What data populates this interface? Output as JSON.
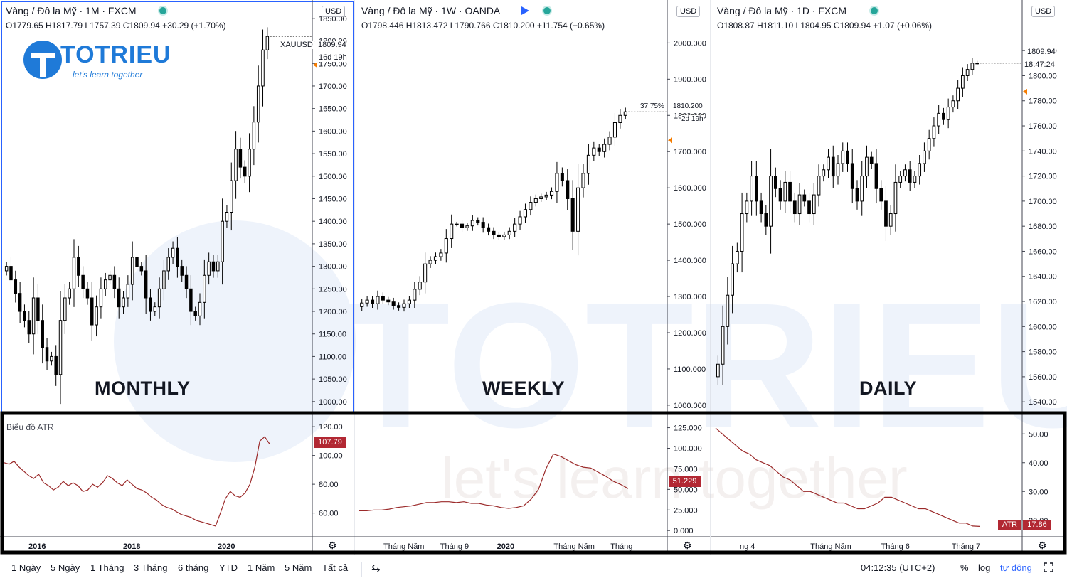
{
  "watermark": {
    "brand": "TOTRIEU",
    "tagline": "let's learn together"
  },
  "panels": [
    {
      "header": "Vàng / Đô la Mỹ · 1M · FXCM",
      "ohlc": "O1779.65  H1817.79  L1757.39  C1809.94  +30.29 (+1.70%)",
      "big_label": "MONTHLY"
    },
    {
      "header": "Vàng / Đô la Mỹ · 1W · OANDA",
      "ohlc": "O1798.446  H1813.472  L1790.766  C1810.200  +11.754 (+0.65%)",
      "big_label": "WEEKLY"
    },
    {
      "header": "Vàng / Đô la Mỹ · 1D · FXCM",
      "ohlc": "O1808.87  H1811.10  L1804.95  C1809.94  +1.07 (+0.06%)",
      "big_label": "DAILY"
    }
  ],
  "usd_badge": "USD",
  "price_markers": {
    "monthly": {
      "symbol": "XAUUSD",
      "price": "1809.94",
      "countdown": "16d 19h"
    },
    "weekly": {
      "pct": "37.75%",
      "price": "1810.200",
      "countdown": "2d 19h"
    },
    "daily": {
      "price": "1809.94",
      "countdown": "18:47:24"
    }
  },
  "atr_label": "Biểu đồ ATR",
  "atr_markers": {
    "monthly": "107.79",
    "weekly": "51.229",
    "daily_name": "ATR",
    "daily": "17.86"
  },
  "chart_data": [
    {
      "type": "candlestick",
      "timeframe": "1M",
      "price_axis": {
        "ticks": [
          "1850.00",
          "1800.00",
          "1750.00",
          "1700.00",
          "1650.00",
          "1600.00",
          "1550.00",
          "1500.00",
          "1450.00",
          "1400.00",
          "1350.00",
          "1300.00",
          "1250.00",
          "1200.00",
          "1150.00",
          "1100.00",
          "1050.00",
          "1000.00"
        ],
        "range": [
          995,
          1875
        ]
      },
      "time_axis": [
        "2016",
        "2018",
        "2020"
      ],
      "close_series": [
        1300,
        1270,
        1240,
        1200,
        1180,
        1150,
        1230,
        1180,
        1120,
        1090,
        1100,
        1060,
        1180,
        1230,
        1250,
        1320,
        1280,
        1250,
        1230,
        1170,
        1210,
        1250,
        1270,
        1280,
        1250,
        1210,
        1230,
        1260,
        1320,
        1300,
        1290,
        1230,
        1200,
        1210,
        1250,
        1290,
        1320,
        1340,
        1300,
        1280,
        1250,
        1200,
        1190,
        1220,
        1280,
        1310,
        1290,
        1310,
        1400,
        1420,
        1490,
        1560,
        1520,
        1500,
        1560,
        1620,
        1700,
        1780,
        1810
      ],
      "atr": {
        "ticks": [
          "120.00",
          "100.00",
          "80.00",
          "60.00"
        ],
        "range": [
          45,
          125
        ],
        "series": [
          95,
          94,
          96,
          92,
          89,
          86,
          84,
          87,
          81,
          79,
          76,
          78,
          82,
          79,
          81,
          79,
          75,
          76,
          80,
          78,
          81,
          86,
          84,
          81,
          79,
          83,
          80,
          77,
          76,
          74,
          71,
          69,
          66,
          64,
          63,
          61,
          59,
          58,
          57,
          55,
          54,
          53,
          52,
          51,
          60,
          70,
          75,
          72,
          71,
          74,
          80,
          92,
          110,
          113,
          108
        ],
        "last": 107.79
      }
    },
    {
      "type": "candlestick",
      "timeframe": "1W",
      "price_axis": {
        "ticks": [
          "2000.000",
          "1900.000",
          "1800.000",
          "1700.000",
          "1600.000",
          "1500.000",
          "1400.000",
          "1300.000",
          "1200.000",
          "1100.000",
          "1000.000"
        ],
        "range": [
          990,
          2040
        ]
      },
      "time_axis": [
        "Tháng Năm",
        "Tháng 9",
        "2020",
        "Tháng Năm",
        "Tháng"
      ],
      "close_series": [
        1282,
        1290,
        1280,
        1300,
        1290,
        1285,
        1275,
        1270,
        1280,
        1290,
        1320,
        1340,
        1390,
        1400,
        1410,
        1420,
        1460,
        1500,
        1500,
        1490,
        1495,
        1510,
        1505,
        1490,
        1480,
        1470,
        1465,
        1470,
        1480,
        1500,
        1520,
        1540,
        1560,
        1570,
        1575,
        1580,
        1590,
        1640,
        1620,
        1570,
        1480,
        1600,
        1640,
        1690,
        1710,
        1700,
        1720,
        1740,
        1780,
        1800,
        1810
      ],
      "atr": {
        "ticks": [
          "125.000",
          "100.000",
          "75.000",
          "50.000",
          "25.000",
          "0.000"
        ],
        "range": [
          -5,
          135
        ],
        "series": [
          24,
          24,
          25,
          25,
          26,
          28,
          29,
          30,
          32,
          34,
          34,
          35,
          35,
          34,
          35,
          33,
          33,
          31,
          30,
          28,
          27,
          28,
          30,
          38,
          50,
          75,
          93,
          90,
          85,
          80,
          77,
          76,
          71,
          66,
          60,
          56,
          51
        ],
        "last": 51.229
      }
    },
    {
      "type": "candlestick",
      "timeframe": "1D",
      "price_axis": {
        "ticks": [
          "1820.00",
          "1800.00",
          "1780.00",
          "1760.00",
          "1740.00",
          "1720.00",
          "1700.00",
          "1680.00",
          "1660.00",
          "1640.00",
          "1620.00",
          "1600.00",
          "1580.00",
          "1560.00",
          "1540.00"
        ],
        "range": [
          1535,
          1832
        ]
      },
      "time_axis": [
        "ng 4",
        "Tháng Năm",
        "Tháng 6",
        "Tháng 7"
      ],
      "close_series": [
        1570,
        1600,
        1625,
        1650,
        1660,
        1690,
        1700,
        1720,
        1700,
        1690,
        1680,
        1720,
        1710,
        1700,
        1715,
        1700,
        1690,
        1705,
        1700,
        1690,
        1705,
        1720,
        1725,
        1735,
        1720,
        1730,
        1740,
        1730,
        1710,
        1700,
        1720,
        1735,
        1730,
        1710,
        1700,
        1680,
        1690,
        1715,
        1720,
        1725,
        1715,
        1720,
        1730,
        1740,
        1750,
        1760,
        1770,
        1765,
        1775,
        1780,
        1790,
        1800,
        1805,
        1810,
        1810
      ],
      "atr": {
        "ticks": [
          "50.00",
          "40.00",
          "30.00",
          "20.00"
        ],
        "range": [
          15,
          55
        ],
        "series": [
          52,
          50,
          48,
          46,
          44,
          43,
          41,
          40,
          39,
          37,
          35,
          34,
          32,
          30,
          30,
          29,
          28,
          27,
          26,
          26,
          25,
          24,
          24,
          25,
          26,
          28,
          28,
          27,
          26,
          25,
          24,
          24,
          23,
          22,
          21,
          20,
          19,
          19,
          18,
          17.86
        ],
        "last": 17.86
      }
    }
  ],
  "toolbar": {
    "ranges": [
      "1 Ngày",
      "5 Ngày",
      "1 Tháng",
      "3 Tháng",
      "6 tháng",
      "YTD",
      "1 Năm",
      "5 Năm",
      "Tất cả"
    ],
    "time": "04:12:35 (UTC+2)",
    "percent": "%",
    "log": "log",
    "auto": "tự động"
  }
}
